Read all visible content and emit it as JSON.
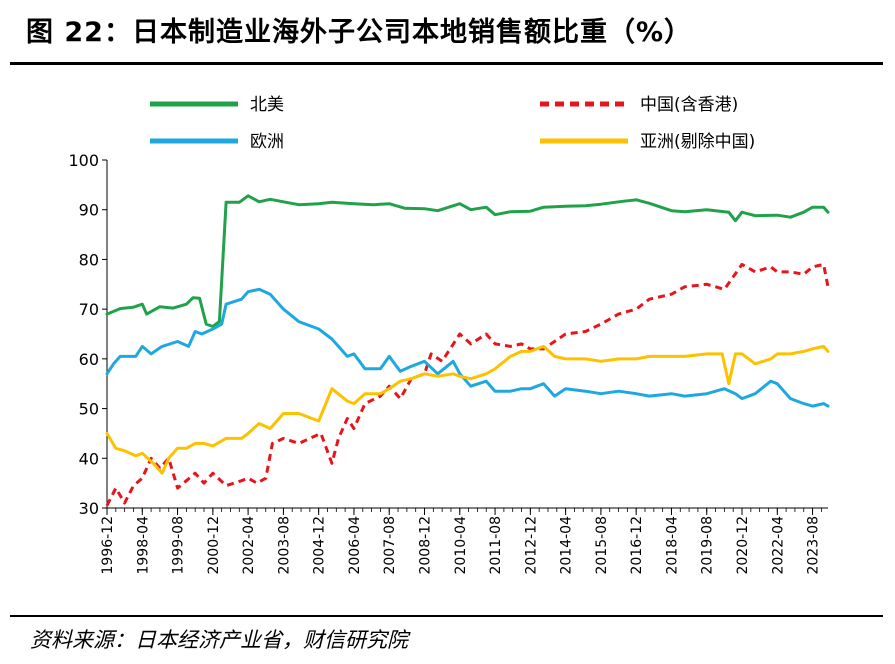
{
  "title": "图 22：日本制造业海外子公司本地销售额比重（%）",
  "source": "资料来源：日本经济产业省，财信研究院",
  "chart_data": {
    "type": "line",
    "ylim": [
      30,
      100
    ],
    "yticks": [
      30,
      40,
      50,
      60,
      70,
      80,
      90,
      100
    ],
    "x_tick_labels": [
      "1996-12",
      "1998-04",
      "1999-08",
      "2000-12",
      "2002-04",
      "2003-08",
      "2004-12",
      "2006-04",
      "2007-08",
      "2008-12",
      "2010-04",
      "2011-08",
      "2012-12",
      "2014-04",
      "2015-08",
      "2016-12",
      "2018-04",
      "2019-08",
      "2020-12",
      "2022-04",
      "2023-08"
    ],
    "x_start": "1996-12",
    "x_end": "2024-03",
    "legend_placement": "top",
    "series": [
      {
        "name": "北美",
        "color": "#1fa24a",
        "dash": "solid",
        "points": [
          [
            "1996-12",
            69
          ],
          [
            "1997-06",
            70.1
          ],
          [
            "1997-12",
            70.4
          ],
          [
            "1998-04",
            71
          ],
          [
            "1998-06",
            69
          ],
          [
            "1998-12",
            70.5
          ],
          [
            "1999-06",
            70.2
          ],
          [
            "1999-12",
            71
          ],
          [
            "2000-03",
            72.3
          ],
          [
            "2000-06",
            72.2
          ],
          [
            "2000-09",
            67
          ],
          [
            "2000-12",
            66.5
          ],
          [
            "2001-03",
            67.5
          ],
          [
            "2001-06",
            91.5
          ],
          [
            "2001-12",
            91.5
          ],
          [
            "2002-04",
            92.8
          ],
          [
            "2002-09",
            91.6
          ],
          [
            "2003-02",
            92.1
          ],
          [
            "2003-08",
            91.6
          ],
          [
            "2004-03",
            91
          ],
          [
            "2004-12",
            91.2
          ],
          [
            "2005-06",
            91.5
          ],
          [
            "2006-04",
            91.2
          ],
          [
            "2007-01",
            91
          ],
          [
            "2007-08",
            91.2
          ],
          [
            "2008-03",
            90.3
          ],
          [
            "2008-12",
            90.2
          ],
          [
            "2009-06",
            89.8
          ],
          [
            "2010-04",
            91.2
          ],
          [
            "2010-09",
            90
          ],
          [
            "2011-04",
            90.5
          ],
          [
            "2011-08",
            89
          ],
          [
            "2012-03",
            89.6
          ],
          [
            "2012-12",
            89.7
          ],
          [
            "2013-06",
            90.5
          ],
          [
            "2014-04",
            90.7
          ],
          [
            "2015-01",
            90.8
          ],
          [
            "2015-08",
            91.1
          ],
          [
            "2016-06",
            91.7
          ],
          [
            "2016-12",
            92
          ],
          [
            "2017-06",
            91.3
          ],
          [
            "2018-04",
            89.8
          ],
          [
            "2018-10",
            89.6
          ],
          [
            "2019-08",
            90
          ],
          [
            "2020-06",
            89.5
          ],
          [
            "2020-09",
            87.8
          ],
          [
            "2020-12",
            89.5
          ],
          [
            "2021-06",
            88.8
          ],
          [
            "2022-04",
            88.9
          ],
          [
            "2022-10",
            88.5
          ],
          [
            "2023-04",
            89.5
          ],
          [
            "2023-08",
            90.5
          ],
          [
            "2024-01",
            90.5
          ],
          [
            "2024-03",
            89.5
          ]
        ]
      },
      {
        "name": "中国(含香港)",
        "color": "#e8141b",
        "dash": "dashed",
        "points": [
          [
            "1996-12",
            30.5
          ],
          [
            "1997-04",
            34
          ],
          [
            "1997-08",
            31
          ],
          [
            "1997-12",
            34.5
          ],
          [
            "1998-04",
            36
          ],
          [
            "1998-08",
            40
          ],
          [
            "1998-12",
            38
          ],
          [
            "1999-04",
            40
          ],
          [
            "1999-08",
            34
          ],
          [
            "1999-12",
            35.5
          ],
          [
            "2000-04",
            37
          ],
          [
            "2000-08",
            35
          ],
          [
            "2000-12",
            37
          ],
          [
            "2001-06",
            34.5
          ],
          [
            "2002-01",
            35.5
          ],
          [
            "2002-04",
            36
          ],
          [
            "2002-08",
            35
          ],
          [
            "2002-12",
            36
          ],
          [
            "2003-03",
            43
          ],
          [
            "2003-08",
            44
          ],
          [
            "2004-03",
            43
          ],
          [
            "2004-08",
            44
          ],
          [
            "2005-01",
            45
          ],
          [
            "2005-06",
            39
          ],
          [
            "2005-09",
            44
          ],
          [
            "2006-01",
            48
          ],
          [
            "2006-04",
            46
          ],
          [
            "2006-09",
            51
          ],
          [
            "2007-04",
            52.5
          ],
          [
            "2007-08",
            54.5
          ],
          [
            "2008-01",
            52
          ],
          [
            "2008-06",
            56
          ],
          [
            "2008-12",
            57
          ],
          [
            "2009-03",
            61
          ],
          [
            "2009-08",
            59.5
          ],
          [
            "2010-04",
            65
          ],
          [
            "2010-09",
            63
          ],
          [
            "2011-04",
            65
          ],
          [
            "2011-08",
            63
          ],
          [
            "2012-03",
            62.5
          ],
          [
            "2012-08",
            63
          ],
          [
            "2012-12",
            62
          ],
          [
            "2013-06",
            62
          ],
          [
            "2014-04",
            65
          ],
          [
            "2015-01",
            65.5
          ],
          [
            "2015-08",
            67
          ],
          [
            "2016-04",
            69
          ],
          [
            "2016-12",
            70
          ],
          [
            "2017-06",
            72
          ],
          [
            "2018-04",
            73
          ],
          [
            "2018-10",
            74.5
          ],
          [
            "2019-08",
            75
          ],
          [
            "2020-04",
            74
          ],
          [
            "2020-12",
            79
          ],
          [
            "2021-06",
            77.5
          ],
          [
            "2022-01",
            78.5
          ],
          [
            "2022-04",
            77.5
          ],
          [
            "2022-10",
            77.5
          ],
          [
            "2023-04",
            77
          ],
          [
            "2023-08",
            78.5
          ],
          [
            "2024-01",
            79
          ],
          [
            "2024-03",
            74.5
          ]
        ]
      },
      {
        "name": "欧洲",
        "color": "#1fa8e0",
        "dash": "solid",
        "points": [
          [
            "1996-12",
            57
          ],
          [
            "1997-03",
            59
          ],
          [
            "1997-06",
            60.5
          ],
          [
            "1998-01",
            60.5
          ],
          [
            "1998-04",
            62.5
          ],
          [
            "1998-08",
            61
          ],
          [
            "1999-01",
            62.5
          ],
          [
            "1999-08",
            63.5
          ],
          [
            "2000-01",
            62.5
          ],
          [
            "2000-04",
            65.5
          ],
          [
            "2000-07",
            65
          ],
          [
            "2000-12",
            66
          ],
          [
            "2001-04",
            67
          ],
          [
            "2001-06",
            71
          ],
          [
            "2002-01",
            72
          ],
          [
            "2002-04",
            73.5
          ],
          [
            "2002-09",
            74
          ],
          [
            "2003-02",
            73
          ],
          [
            "2003-08",
            70
          ],
          [
            "2004-03",
            67.5
          ],
          [
            "2004-12",
            66
          ],
          [
            "2005-06",
            64
          ],
          [
            "2006-01",
            60.5
          ],
          [
            "2006-04",
            61
          ],
          [
            "2006-09",
            58
          ],
          [
            "2007-04",
            58
          ],
          [
            "2007-08",
            60.5
          ],
          [
            "2008-01",
            57.5
          ],
          [
            "2008-06",
            58.5
          ],
          [
            "2008-12",
            59.5
          ],
          [
            "2009-06",
            57
          ],
          [
            "2010-01",
            59.5
          ],
          [
            "2010-04",
            57
          ],
          [
            "2010-09",
            54.5
          ],
          [
            "2011-04",
            55.5
          ],
          [
            "2011-08",
            53.5
          ],
          [
            "2012-03",
            53.5
          ],
          [
            "2012-08",
            54
          ],
          [
            "2012-12",
            54
          ],
          [
            "2013-06",
            55
          ],
          [
            "2013-11",
            52.5
          ],
          [
            "2014-04",
            54
          ],
          [
            "2015-01",
            53.5
          ],
          [
            "2015-08",
            53
          ],
          [
            "2016-04",
            53.5
          ],
          [
            "2016-12",
            53
          ],
          [
            "2017-06",
            52.5
          ],
          [
            "2018-04",
            53
          ],
          [
            "2018-10",
            52.5
          ],
          [
            "2019-08",
            53
          ],
          [
            "2020-04",
            54
          ],
          [
            "2020-09",
            53
          ],
          [
            "2020-12",
            52
          ],
          [
            "2021-06",
            53
          ],
          [
            "2022-01",
            55.5
          ],
          [
            "2022-04",
            55
          ],
          [
            "2022-10",
            52
          ],
          [
            "2023-04",
            51
          ],
          [
            "2023-08",
            50.5
          ],
          [
            "2024-01",
            51
          ],
          [
            "2024-03",
            50.5
          ]
        ]
      },
      {
        "name": "亚洲(剔除中国)",
        "color": "#fcc200",
        "dash": "solid",
        "points": [
          [
            "1996-12",
            45
          ],
          [
            "1997-04",
            42
          ],
          [
            "1997-08",
            41.5
          ],
          [
            "1998-01",
            40.5
          ],
          [
            "1998-04",
            41
          ],
          [
            "1998-09",
            39
          ],
          [
            "1999-01",
            37
          ],
          [
            "1999-04",
            40
          ],
          [
            "1999-08",
            42
          ],
          [
            "1999-12",
            42
          ],
          [
            "2000-04",
            43
          ],
          [
            "2000-08",
            43
          ],
          [
            "2000-12",
            42.5
          ],
          [
            "2001-06",
            44
          ],
          [
            "2002-01",
            44
          ],
          [
            "2002-04",
            45
          ],
          [
            "2002-09",
            47
          ],
          [
            "2003-02",
            46
          ],
          [
            "2003-08",
            49
          ],
          [
            "2004-03",
            49
          ],
          [
            "2004-12",
            47.5
          ],
          [
            "2005-06",
            54
          ],
          [
            "2006-01",
            51.5
          ],
          [
            "2006-04",
            51
          ],
          [
            "2006-09",
            53
          ],
          [
            "2007-04",
            53
          ],
          [
            "2007-08",
            54
          ],
          [
            "2008-01",
            55.5
          ],
          [
            "2008-06",
            56
          ],
          [
            "2008-12",
            57
          ],
          [
            "2009-06",
            56.5
          ],
          [
            "2010-01",
            57
          ],
          [
            "2010-04",
            56.5
          ],
          [
            "2010-09",
            56
          ],
          [
            "2011-04",
            57
          ],
          [
            "2011-08",
            58
          ],
          [
            "2012-03",
            60.5
          ],
          [
            "2012-08",
            61.5
          ],
          [
            "2012-12",
            61.5
          ],
          [
            "2013-06",
            62.5
          ],
          [
            "2013-11",
            60.5
          ],
          [
            "2014-04",
            60
          ],
          [
            "2015-01",
            60
          ],
          [
            "2015-08",
            59.5
          ],
          [
            "2016-04",
            60
          ],
          [
            "2016-12",
            60
          ],
          [
            "2017-06",
            60.5
          ],
          [
            "2018-04",
            60.5
          ],
          [
            "2018-10",
            60.5
          ],
          [
            "2019-08",
            61
          ],
          [
            "2020-03",
            61
          ],
          [
            "2020-06",
            55
          ],
          [
            "2020-09",
            61
          ],
          [
            "2020-12",
            61
          ],
          [
            "2021-06",
            59
          ],
          [
            "2022-01",
            60
          ],
          [
            "2022-04",
            61
          ],
          [
            "2022-10",
            61
          ],
          [
            "2023-04",
            61.5
          ],
          [
            "2023-08",
            62
          ],
          [
            "2024-01",
            62.5
          ],
          [
            "2024-03",
            61.5
          ]
        ]
      }
    ]
  }
}
